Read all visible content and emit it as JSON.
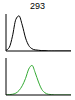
{
  "chart_data": [
    {
      "type": "line",
      "title": "293",
      "x": [
        1,
        1.6,
        2.5,
        4,
        6.3,
        10,
        16,
        25,
        40,
        63,
        100,
        160,
        250,
        400,
        630,
        1000,
        10000
      ],
      "series": [
        {
          "color": "#000000",
          "values": [
            2,
            10,
            40,
            85,
            95,
            70,
            35,
            15,
            6,
            3,
            2,
            1,
            1,
            0,
            0,
            0,
            0
          ]
        }
      ],
      "log": "x",
      "xlim": [
        1,
        10000
      ],
      "xticks": [
        1,
        10,
        100,
        1000,
        10000
      ],
      "ylim": [
        0,
        100
      ],
      "yticks": [
        0,
        50,
        100
      ],
      "tick_labels": false
    },
    {
      "type": "line",
      "x": [
        1,
        1.6,
        2.5,
        4,
        6.3,
        10,
        16,
        25,
        40,
        63,
        100,
        160,
        250,
        400,
        630,
        1000,
        10000
      ],
      "series": [
        {
          "color": "#33aa33",
          "values": [
            0,
            1,
            2,
            5,
            12,
            25,
            45,
            70,
            80,
            60,
            35,
            15,
            6,
            2,
            1,
            0,
            0
          ]
        }
      ],
      "log": "x",
      "xlim": [
        1,
        10000
      ],
      "xticks": [
        1,
        10,
        100,
        1000,
        10000
      ],
      "ylim": [
        0,
        100
      ],
      "yticks": [
        0,
        50,
        100
      ],
      "tick_labels": false
    }
  ]
}
